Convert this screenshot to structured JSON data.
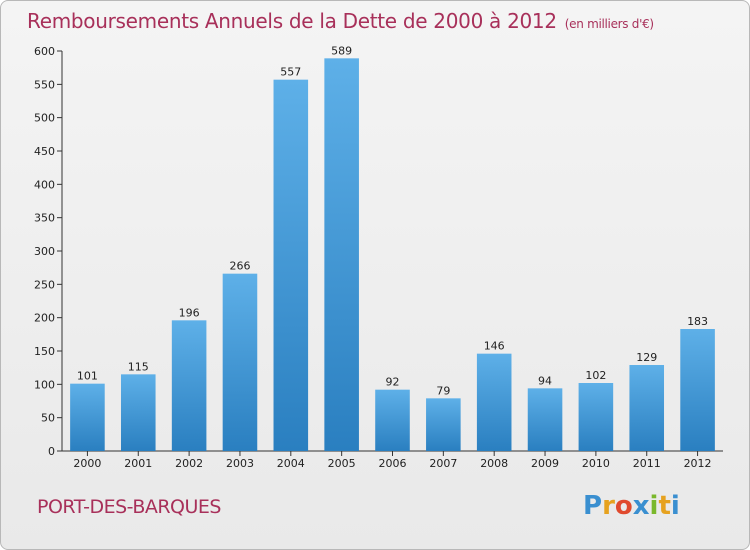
{
  "title": "Remboursements Annuels de la Dette de 2000 à 2012",
  "unit": "(en milliers d'€)",
  "place": "PORT-DES-BARQUES",
  "logo_text": "Proxiti",
  "colors": {
    "bar_top": "#5eb0e8",
    "bar_bottom": "#2a7fc0",
    "title": "#a8305a"
  },
  "chart_data": {
    "type": "bar",
    "title": "Remboursements Annuels de la Dette de 2000 à 2012",
    "xlabel": "",
    "ylabel": "",
    "ylim": [
      0,
      600
    ],
    "yticks": [
      0,
      50,
      100,
      150,
      200,
      250,
      300,
      350,
      400,
      450,
      500,
      550,
      600
    ],
    "categories": [
      "2000",
      "2001",
      "2002",
      "2003",
      "2004",
      "2005",
      "2006",
      "2007",
      "2008",
      "2009",
      "2010",
      "2011",
      "2012"
    ],
    "values": [
      101,
      115,
      196,
      266,
      557,
      589,
      92,
      79,
      146,
      94,
      102,
      129,
      183
    ],
    "grid": false
  }
}
